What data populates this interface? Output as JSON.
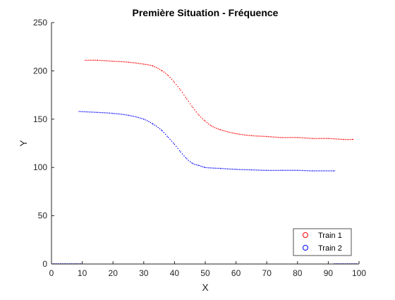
{
  "chart_data": {
    "type": "scatter",
    "title": "Première Situation - Fréquence",
    "xlabel": "X",
    "ylabel": "Y",
    "xlim": [
      0,
      100
    ],
    "ylim": [
      0,
      250
    ],
    "xticks": [
      "0",
      "10",
      "20",
      "30",
      "40",
      "50",
      "60",
      "70",
      "80",
      "90",
      "100"
    ],
    "yticks": [
      "0",
      "50",
      "100",
      "150",
      "200",
      "250"
    ],
    "grid": false,
    "legend_position": "bottom-right",
    "series": [
      {
        "name": "Train 1",
        "color": "#ff0000",
        "marker": "o",
        "x": [
          11,
          15,
          20,
          25,
          30,
          33,
          36,
          38,
          40,
          42,
          44,
          46,
          48,
          50,
          52,
          55,
          60,
          65,
          70,
          75,
          80,
          85,
          90,
          95,
          98
        ],
        "y": [
          211,
          211,
          210,
          209,
          207,
          205,
          200,
          195,
          188,
          180,
          171,
          162,
          154,
          148,
          143,
          139,
          135,
          133,
          132,
          131,
          131,
          130,
          130,
          129,
          129
        ]
      },
      {
        "name": "Train 2",
        "color": "#0000ff",
        "marker": "o",
        "x": [
          9,
          15,
          20,
          25,
          30,
          33,
          36,
          38,
          40,
          42,
          44,
          46,
          48,
          50,
          55,
          60,
          65,
          70,
          75,
          80,
          85,
          92
        ],
        "y": [
          158,
          157,
          156,
          154,
          150,
          145,
          138,
          131,
          124,
          116,
          109,
          104,
          102,
          100,
          99,
          98,
          97.5,
          97,
          97,
          97,
          96.5,
          96.5
        ]
      }
    ]
  }
}
